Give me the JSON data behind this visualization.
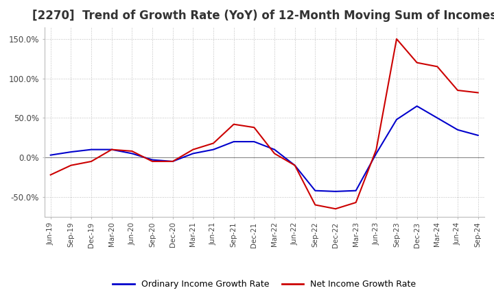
{
  "title": "[2270]  Trend of Growth Rate (YoY) of 12-Month Moving Sum of Incomes",
  "title_fontsize": 12,
  "ylim": [
    -75,
    165
  ],
  "yticks": [
    -50,
    0,
    50,
    100,
    150
  ],
  "ytick_labels": [
    "-50.0%",
    "0.0%",
    "50.0%",
    "100.0%",
    "150.0%"
  ],
  "background_color": "#ffffff",
  "grid_color": "#bbbbbb",
  "x_labels": [
    "Jun-19",
    "Sep-19",
    "Dec-19",
    "Mar-20",
    "Jun-20",
    "Sep-20",
    "Dec-20",
    "Mar-21",
    "Jun-21",
    "Sep-21",
    "Dec-21",
    "Mar-22",
    "Jun-22",
    "Sep-22",
    "Dec-22",
    "Mar-23",
    "Jun-23",
    "Sep-23",
    "Dec-23",
    "Mar-24",
    "Jun-24",
    "Sep-24"
  ],
  "ordinary_income": [
    3.0,
    7.0,
    10.0,
    10.0,
    5.0,
    -3.0,
    -5.0,
    5.0,
    10.0,
    20.0,
    20.0,
    10.0,
    -10.0,
    -42.0,
    -43.0,
    -42.0,
    5.0,
    48.0,
    65.0,
    50.0,
    35.0,
    28.0
  ],
  "net_income": [
    -22.0,
    -10.0,
    -5.0,
    10.0,
    8.0,
    -5.0,
    -5.0,
    10.0,
    18.0,
    42.0,
    38.0,
    5.0,
    -10.0,
    -60.0,
    -65.0,
    -57.0,
    10.0,
    150.0,
    120.0,
    115.0,
    85.0,
    82.0
  ],
  "ordinary_color": "#0000cc",
  "net_color": "#cc0000",
  "line_width": 1.5,
  "legend_ordinary": "Ordinary Income Growth Rate",
  "legend_net": "Net Income Growth Rate"
}
